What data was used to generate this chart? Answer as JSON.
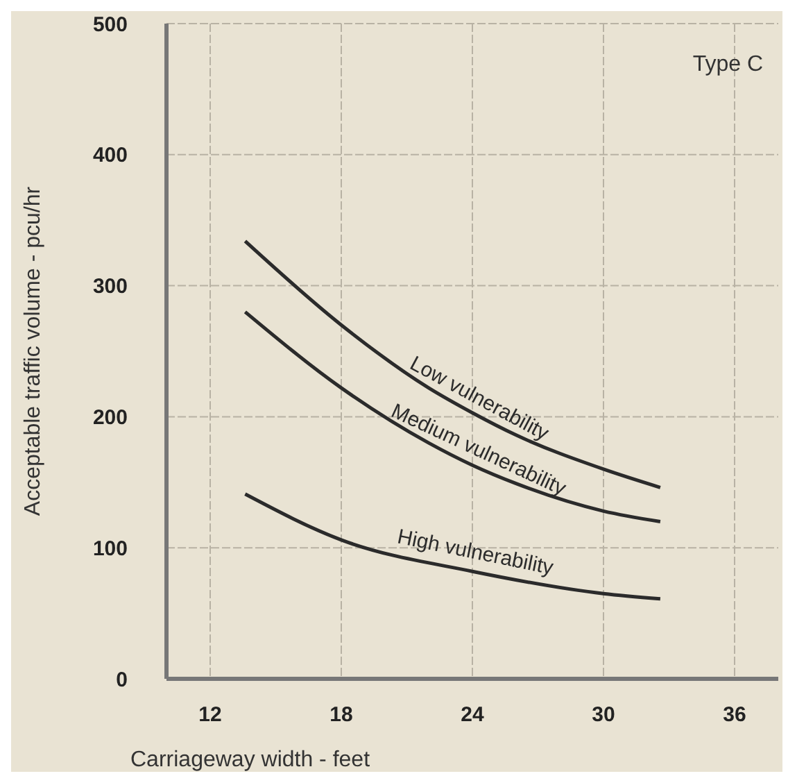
{
  "chart_data": {
    "type": "line",
    "xlabel": "Carriageway width - feet",
    "ylabel": "Acceptable traffic volume - pcu/hr",
    "annotations": [
      "Type C"
    ],
    "xlim": [
      10,
      38
    ],
    "xticks": [
      12,
      18,
      24,
      30,
      36
    ],
    "ylim": [
      0,
      500
    ],
    "yticks": [
      0,
      100,
      200,
      300,
      400,
      500
    ],
    "grid": true,
    "legend": false,
    "marker": "none",
    "line_style": "solid",
    "series": [
      {
        "name": "Low vulnerability",
        "color": "#2b2b2b",
        "x": [
          13.6,
          18,
          22,
          24,
          26,
          30,
          32.6
        ],
        "values": [
          334,
          270,
          222,
          203,
          186,
          160,
          146
        ]
      },
      {
        "name": "Medium vulnerability",
        "color": "#2b2b2b",
        "x": [
          13.6,
          18,
          22,
          24,
          26,
          30,
          32.6
        ],
        "values": [
          280,
          222,
          180,
          163,
          149,
          128,
          120
        ]
      },
      {
        "name": "High vulnerability",
        "color": "#2b2b2b",
        "x": [
          13.6,
          18,
          24,
          30,
          32.6
        ],
        "values": [
          141,
          106,
          82,
          65,
          61
        ]
      }
    ]
  }
}
